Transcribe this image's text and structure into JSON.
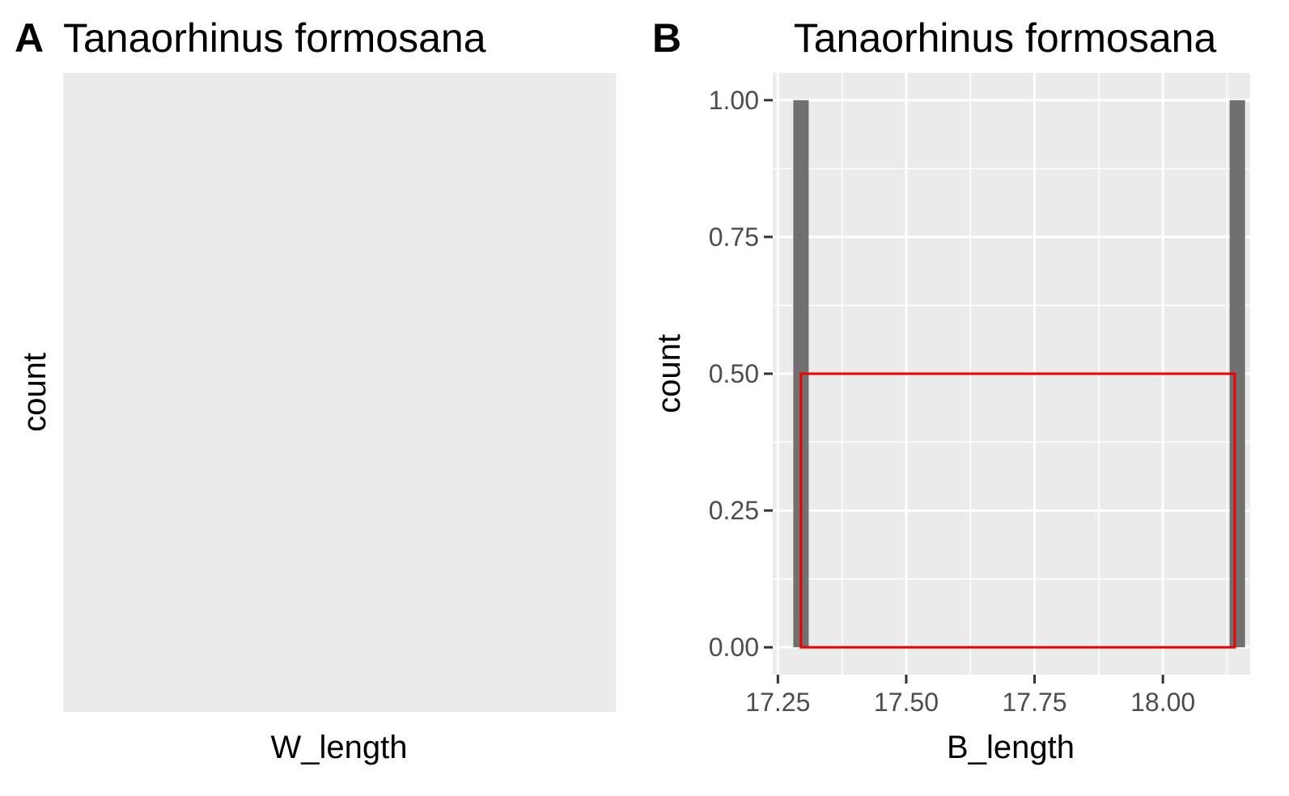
{
  "panels": {
    "a": {
      "tag": "A",
      "title": "Tanaorhinus formosana",
      "xlabel": "W_length",
      "ylabel": "count"
    },
    "b": {
      "tag": "B",
      "title": "Tanaorhinus formosana",
      "xlabel": "B_length",
      "ylabel": "count"
    }
  },
  "colors": {
    "panel_background": "#ebebeb",
    "bar_fill": "#707070",
    "highlight_box": "#ee0000",
    "tick_label": "#4d4d4d"
  },
  "chart_data": [
    {
      "type": "bar",
      "title": "Tanaorhinus formosana",
      "xlabel": "W_length",
      "ylabel": "count",
      "grid": false,
      "bars": []
    },
    {
      "type": "bar",
      "title": "Tanaorhinus formosana",
      "xlabel": "B_length",
      "ylabel": "count",
      "xlim": [
        17.24,
        18.17
      ],
      "ylim": [
        -0.05,
        1.05
      ],
      "xticks": [
        17.25,
        17.5,
        17.75,
        18.0
      ],
      "xtick_labels": [
        "17.25",
        "17.50",
        "17.75",
        "18.00"
      ],
      "yticks": [
        0,
        0.25,
        0.5,
        0.75,
        1.0
      ],
      "ytick_labels": [
        "0.00",
        "0.25",
        "0.50",
        "0.75",
        "1.00"
      ],
      "grid": true,
      "bars": [
        {
          "x_min": 17.28,
          "x_max": 17.31,
          "count": 1
        },
        {
          "x_min": 18.13,
          "x_max": 18.16,
          "count": 1
        }
      ],
      "annotations": [
        {
          "type": "rectangle",
          "x_min": 17.295,
          "x_max": 18.14,
          "y_min": 0,
          "y_max": 0.5,
          "color": "#ee0000"
        }
      ]
    }
  ]
}
